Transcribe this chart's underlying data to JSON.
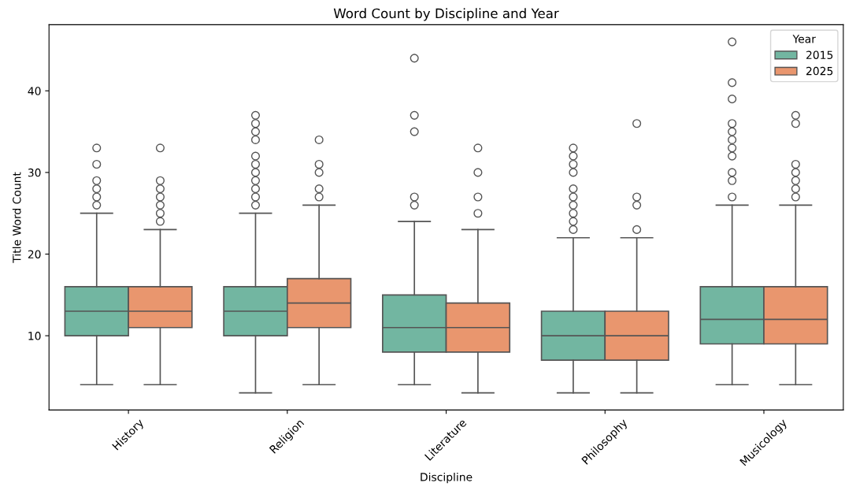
{
  "chart_data": {
    "type": "box",
    "title": "Word Count by Discipline and Year",
    "xlabel": "Discipline",
    "ylabel": "Title Word Count",
    "legend_title": "Year",
    "legend": "top right",
    "grid": false,
    "categories": [
      "History",
      "Religion",
      "Literature",
      "Philosophy",
      "Musicology"
    ],
    "ylim": [
      0.9,
      48.1
    ],
    "yticks": [
      10,
      20,
      30,
      40
    ],
    "series": [
      {
        "name": "2015",
        "color": "#72b6a1",
        "boxes": [
          {
            "low": 4,
            "q1": 10,
            "median": 13,
            "q3": 16,
            "high": 25,
            "outliers": [
              26,
              27,
              28,
              29,
              31,
              33
            ]
          },
          {
            "low": 3,
            "q1": 10,
            "median": 13,
            "q3": 16,
            "high": 25,
            "outliers": [
              26,
              27,
              28,
              29,
              30,
              31,
              32,
              34,
              35,
              36,
              37
            ]
          },
          {
            "low": 4,
            "q1": 8,
            "median": 11,
            "q3": 15,
            "high": 24,
            "outliers": [
              26,
              27,
              35,
              37,
              44
            ]
          },
          {
            "low": 3,
            "q1": 7,
            "median": 10,
            "q3": 13,
            "high": 22,
            "outliers": [
              23,
              24,
              25,
              26,
              27,
              28,
              30,
              31,
              32,
              33
            ]
          },
          {
            "low": 4,
            "q1": 9,
            "median": 12,
            "q3": 16,
            "high": 26,
            "outliers": [
              27,
              29,
              30,
              32,
              33,
              34,
              35,
              36,
              39,
              41,
              46
            ]
          }
        ]
      },
      {
        "name": "2025",
        "color": "#e9966e",
        "boxes": [
          {
            "low": 4,
            "q1": 11,
            "median": 13,
            "q3": 16,
            "high": 23,
            "outliers": [
              24,
              25,
              26,
              27,
              28,
              29,
              33
            ]
          },
          {
            "low": 4,
            "q1": 11,
            "median": 14,
            "q3": 17,
            "high": 26,
            "outliers": [
              27,
              28,
              30,
              31,
              34
            ]
          },
          {
            "low": 3,
            "q1": 8,
            "median": 11,
            "q3": 14,
            "high": 23,
            "outliers": [
              25,
              27,
              30,
              33
            ]
          },
          {
            "low": 3,
            "q1": 7,
            "median": 10,
            "q3": 13,
            "high": 22,
            "outliers": [
              23,
              26,
              27,
              36
            ]
          },
          {
            "low": 4,
            "q1": 9,
            "median": 12,
            "q3": 16,
            "high": 26,
            "outliers": [
              27,
              28,
              29,
              30,
              31,
              36,
              37
            ]
          }
        ]
      }
    ]
  }
}
